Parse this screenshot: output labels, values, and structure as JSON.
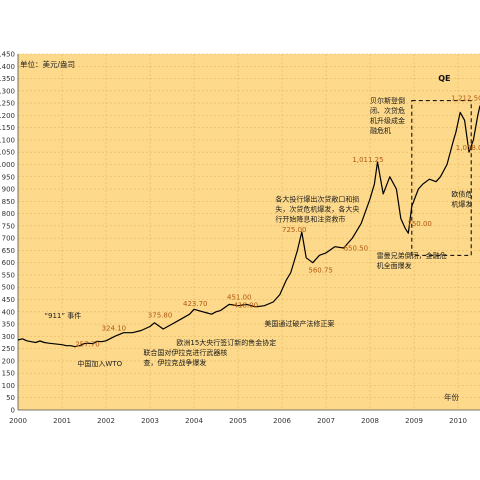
{
  "chart_data": {
    "type": "line",
    "unit_label": "单位：美元/盎司",
    "xlabel": "年份",
    "ylim": [
      0,
      1450
    ],
    "xlim": [
      2000,
      2010.5
    ],
    "grid": true,
    "y_ticks": [
      0,
      50,
      100,
      150,
      200,
      250,
      300,
      350,
      400,
      450,
      500,
      550,
      600,
      650,
      700,
      750,
      800,
      850,
      900,
      950,
      1000,
      1050,
      1100,
      1150,
      1200,
      1250,
      1300,
      1350,
      1400,
      1450
    ],
    "y_tick_labels": [
      "0",
      "50",
      "100",
      "150",
      "200",
      "250",
      "300",
      "350",
      "400",
      "450",
      "500",
      "550",
      "600",
      "650",
      "700",
      "750",
      "800",
      "850",
      "900",
      "950",
      "1000",
      "1050",
      "1100",
      "1150",
      "1200",
      "1250",
      "1300",
      "1350",
      "1400",
      "1450"
    ],
    "x_ticks": [
      2000,
      2001,
      2002,
      2003,
      2004,
      2005,
      2006,
      2007,
      2008,
      2009,
      2010
    ],
    "x_tick_labels": [
      "2000",
      "2001",
      "2002",
      "2003",
      "2004",
      "2005",
      "2006",
      "2007",
      "2008",
      "2009",
      "2010"
    ],
    "series": [
      {
        "color": "#000000",
        "x": [
          2000.0,
          2000.1,
          2000.2,
          2000.3,
          2000.4,
          2000.5,
          2000.6,
          2000.7,
          2000.8,
          2000.9,
          2001.0,
          2001.1,
          2001.2,
          2001.3,
          2001.4,
          2001.5,
          2001.6,
          2001.7,
          2001.8,
          2001.9,
          2002.0,
          2002.2,
          2002.4,
          2002.6,
          2002.8,
          2003.0,
          2003.1,
          2003.3,
          2003.5,
          2003.7,
          2003.9,
          2004.0,
          2004.1,
          2004.3,
          2004.4,
          2004.5,
          2004.6,
          2004.8,
          2005.0,
          2005.2,
          2005.4,
          2005.6,
          2005.8,
          2005.95,
          2006.1,
          2006.2,
          2006.35,
          2006.45,
          2006.55,
          2006.7,
          2006.85,
          2007.0,
          2007.2,
          2007.4,
          2007.6,
          2007.8,
          2008.0,
          2008.1,
          2008.17,
          2008.3,
          2008.45,
          2008.6,
          2008.7,
          2008.8,
          2008.87,
          2008.95,
          2009.1,
          2009.2,
          2009.35,
          2009.5,
          2009.6,
          2009.75,
          2009.9,
          2009.95,
          2010.05,
          2010.15,
          2010.25,
          2010.35,
          2010.45,
          2010.5
        ],
        "y": [
          285,
          290,
          282,
          278,
          275,
          281,
          275,
          272,
          270,
          268,
          266,
          262,
          262,
          258,
          262,
          270,
          272,
          270,
          280,
          278,
          282,
          300,
          315,
          315,
          324,
          340,
          355,
          330,
          350,
          370,
          390,
          410,
          405,
          395,
          390,
          400,
          405,
          430,
          425,
          430,
          420,
          425,
          440,
          470,
          530,
          560,
          650,
          725,
          620,
          600,
          630,
          640,
          665,
          660,
          700,
          760,
          860,
          920,
          1011,
          880,
          950,
          900,
          780,
          740,
          720,
          830,
          900,
          920,
          940,
          930,
          950,
          1000,
          1100,
          1130,
          1212,
          1180,
          1050,
          1100,
          1200,
          1240
        ]
      }
    ],
    "value_labels": [
      {
        "text": "257.70",
        "x": 2001.3,
        "y": 258
      },
      {
        "text": "324.10",
        "x": 2001.9,
        "y": 324
      },
      {
        "text": "375.80",
        "x": 2002.95,
        "y": 376
      },
      {
        "text": "423.70",
        "x": 2003.75,
        "y": 424
      },
      {
        "text": "451.00",
        "x": 2004.75,
        "y": 451
      },
      {
        "text": "418.00",
        "x": 2004.9,
        "y": 418
      },
      {
        "text": "725.00",
        "x": 2006.0,
        "y": 725
      },
      {
        "text": "560.75",
        "x": 2006.6,
        "y": 561
      },
      {
        "text": "650.50",
        "x": 2007.4,
        "y": 650
      },
      {
        "text": "1,011.25",
        "x": 2007.6,
        "y": 1011
      },
      {
        "text": "750.00",
        "x": 2008.85,
        "y": 750
      },
      {
        "text": "1,212.50",
        "x": 2009.85,
        "y": 1260
      },
      {
        "text": "1,058.00",
        "x": 2009.95,
        "y": 1058
      }
    ],
    "annotations": [
      {
        "lines": [
          "“911” 事件"
        ],
        "x": 2000.6,
        "y": 375
      },
      {
        "lines": [
          "中国加入WTO"
        ],
        "x": 2001.35,
        "y": 180
      },
      {
        "lines": [
          "联合国对伊拉克进行武器核",
          "查，伊拉克战争爆发"
        ],
        "x": 2002.85,
        "y": 225
      },
      {
        "lines": [
          "欧洲15大央行签订新的售金协定"
        ],
        "x": 2003.6,
        "y": 265
      },
      {
        "lines": [
          "美国通过破产法修正案"
        ],
        "x": 2005.6,
        "y": 343
      },
      {
        "lines": [
          "各大投行爆出次贷敞口和损",
          "失，次贷危机爆发，各大央",
          "行开始降息和注资救市"
        ],
        "x": 2005.85,
        "y": 850
      },
      {
        "lines": [
          "贝尔斯登倒",
          "闭、次贷危",
          "机升级成金",
          "融危机"
        ],
        "x": 2008.0,
        "y": 1250
      },
      {
        "lines": [
          "雷曼兄弟倒闭，金融危",
          "机全面爆发"
        ],
        "x": 2008.15,
        "y": 620
      },
      {
        "lines": [
          "欧债危",
          "机爆发"
        ],
        "x": 2009.85,
        "y": 870
      },
      {
        "lines": [
          "QE"
        ],
        "x": 2009.55,
        "y": 1340
      }
    ],
    "qe_box": {
      "x0": 2008.95,
      "x1": 2010.3,
      "y0": 630,
      "y1": 1260
    }
  }
}
